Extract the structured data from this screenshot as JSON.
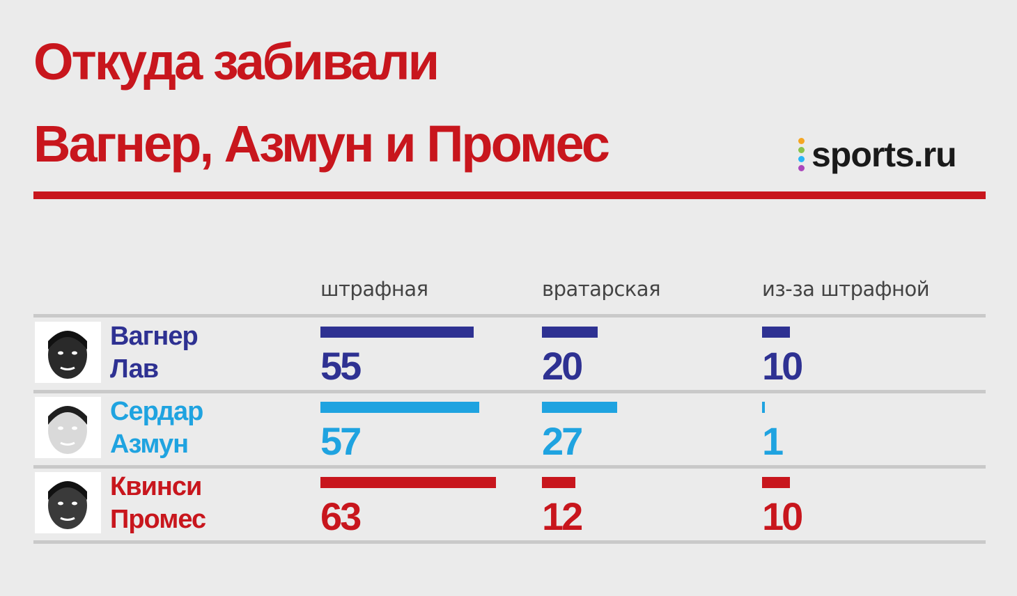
{
  "title": {
    "line1": "Откуда забивали",
    "line2": "Вагнер, Азмун и Промес"
  },
  "logo": {
    "text": "sports.ru",
    "dot_colors": [
      "#f5a623",
      "#8bc34a",
      "#29b6f6",
      "#ab47bc"
    ]
  },
  "colors": {
    "title": "#c8161d",
    "rule": "#c8161d",
    "wagner": "#2e3192",
    "azmun": "#1fa3e0",
    "promes": "#c8161d"
  },
  "chart_data": {
    "type": "bar",
    "categories": [
      "штрафная",
      "вратарская",
      "из-за штрафной"
    ],
    "series": [
      {
        "name": "Вагнер Лав",
        "name_line1": "Вагнер",
        "name_line2": "Лав",
        "color": "#2e3192",
        "values": [
          55,
          20,
          10
        ]
      },
      {
        "name": "Сердар Азмун",
        "name_line1": "Сердар",
        "name_line2": "Азмун",
        "color": "#1fa3e0",
        "values": [
          57,
          27,
          1
        ]
      },
      {
        "name": "Квинси Промес",
        "name_line1": "Квинси",
        "name_line2": "Промес",
        "color": "#c8161d",
        "values": [
          63,
          12,
          10
        ]
      }
    ]
  }
}
